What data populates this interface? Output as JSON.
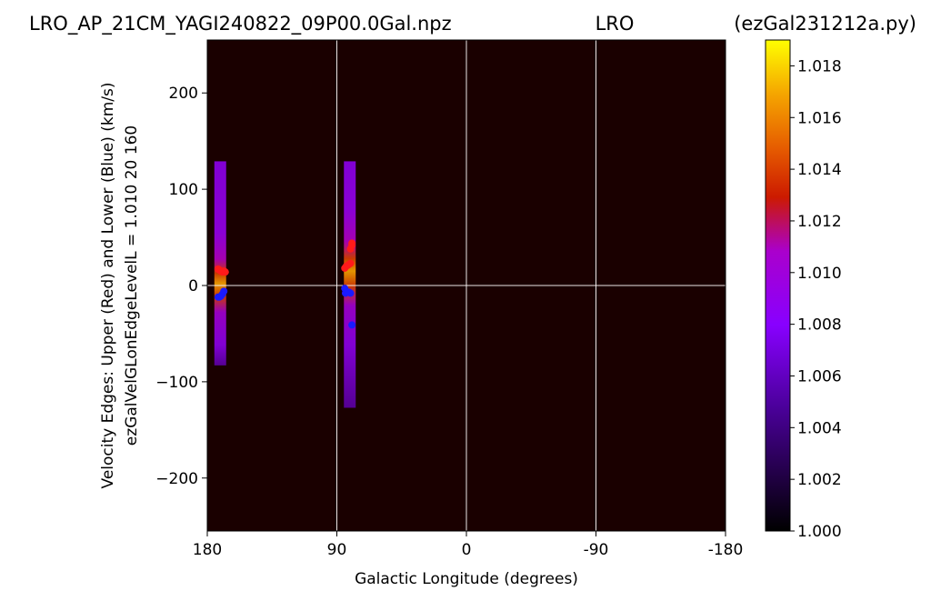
{
  "header": {
    "title_left": "LRO_AP_21CM_YAGI240822_09P00.0Gal.npz",
    "title_center": "LRO",
    "title_right": "(ezGal231212a.py)"
  },
  "chart_data": {
    "type": "heatmap",
    "xlabel": "Galactic Longitude (degrees)",
    "ylabel_line1": "Velocity Edges: Upper (Red) and Lower (Blue) (km/s)",
    "ylabel_line2": "ezGalVelGLonEdgeLevelL = 1.010  20  160",
    "x_axis": {
      "range": [
        180,
        -180
      ],
      "ticks": [
        180,
        90,
        0,
        -90,
        -180
      ],
      "tick_labels": [
        "180",
        "90",
        "0",
        "-90",
        "-180"
      ]
    },
    "y_axis": {
      "range": [
        -255,
        255
      ],
      "ticks": [
        200,
        100,
        0,
        -100,
        -200
      ],
      "tick_labels": [
        "200",
        "100",
        "0",
        "−100",
        "−200"
      ]
    },
    "grid": true,
    "grid_lines": {
      "x": [
        90,
        0,
        -90
      ],
      "y": [
        0
      ]
    },
    "colorbar": {
      "range": [
        1.0,
        1.019
      ],
      "ticks": [
        "1.000",
        "1.002",
        "1.004",
        "1.006",
        "1.008",
        "1.010",
        "1.012",
        "1.014",
        "1.016",
        "1.018"
      ],
      "colormap": "gnuplot"
    },
    "colors": {
      "background": "#1a0000",
      "upper_edge": "#ff1a1a",
      "lower_edge": "#1a1aff",
      "grid": "#ffffff"
    },
    "strips": [
      {
        "glon": 171,
        "vmin": -83,
        "vmax": 129,
        "peak_v": 2,
        "peak_level": 1.019
      },
      {
        "glon": 81,
        "vmin": -127,
        "vmax": 129,
        "peak_v": 15,
        "peak_level": 1.017
      }
    ],
    "upper_edges": [
      {
        "glon": 172.5,
        "v": 17
      },
      {
        "glon": 171.5,
        "v": 16
      },
      {
        "glon": 170.5,
        "v": 15
      },
      {
        "glon": 169.5,
        "v": 14
      },
      {
        "glon": 168.5,
        "v": 15
      },
      {
        "glon": 167.5,
        "v": 14
      },
      {
        "glon": 84.5,
        "v": 18
      },
      {
        "glon": 83.5,
        "v": 20
      },
      {
        "glon": 82.5,
        "v": 21
      },
      {
        "glon": 81.5,
        "v": 22
      },
      {
        "glon": 80.5,
        "v": 23
      },
      {
        "glon": 80.5,
        "v": 38
      },
      {
        "glon": 79.5,
        "v": 42
      },
      {
        "glon": 79.5,
        "v": 44
      }
    ],
    "lower_edges": [
      {
        "glon": 172.5,
        "v": -12
      },
      {
        "glon": 171.5,
        "v": -12
      },
      {
        "glon": 170.5,
        "v": -11
      },
      {
        "glon": 169.5,
        "v": -9
      },
      {
        "glon": 168.5,
        "v": -6
      },
      {
        "glon": 84.5,
        "v": -3
      },
      {
        "glon": 84.0,
        "v": -8
      },
      {
        "glon": 83.5,
        "v": -6
      },
      {
        "glon": 82.5,
        "v": -7
      },
      {
        "glon": 81.5,
        "v": -7
      },
      {
        "glon": 80.5,
        "v": -8
      },
      {
        "glon": 79.5,
        "v": -41
      }
    ]
  }
}
